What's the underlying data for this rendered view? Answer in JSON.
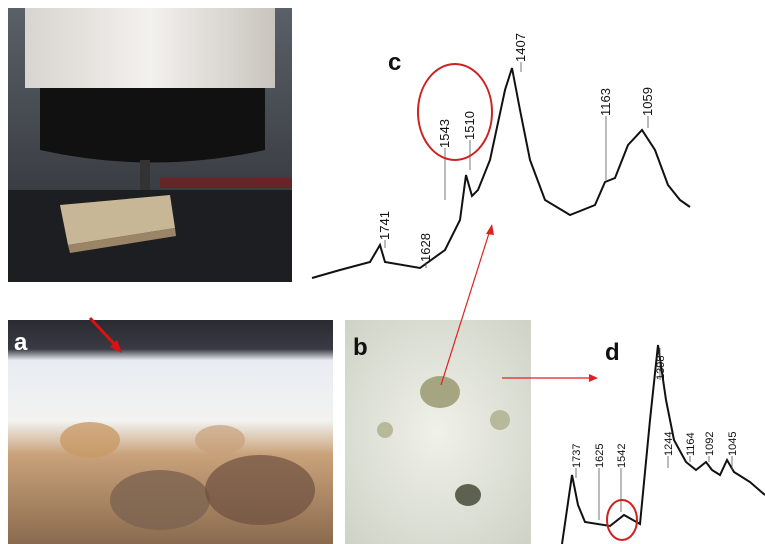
{
  "panels": {
    "a": {
      "label": "a"
    },
    "b": {
      "label": "b"
    },
    "c": {
      "label": "c",
      "peaks": [
        "1741",
        "1628",
        "1543",
        "1510",
        "1407",
        "1163",
        "1059"
      ]
    },
    "d": {
      "label": "d",
      "peaks": [
        "1737",
        "1625",
        "1542",
        "1398",
        "1244",
        "1164",
        "1092",
        "1045"
      ]
    }
  }
}
